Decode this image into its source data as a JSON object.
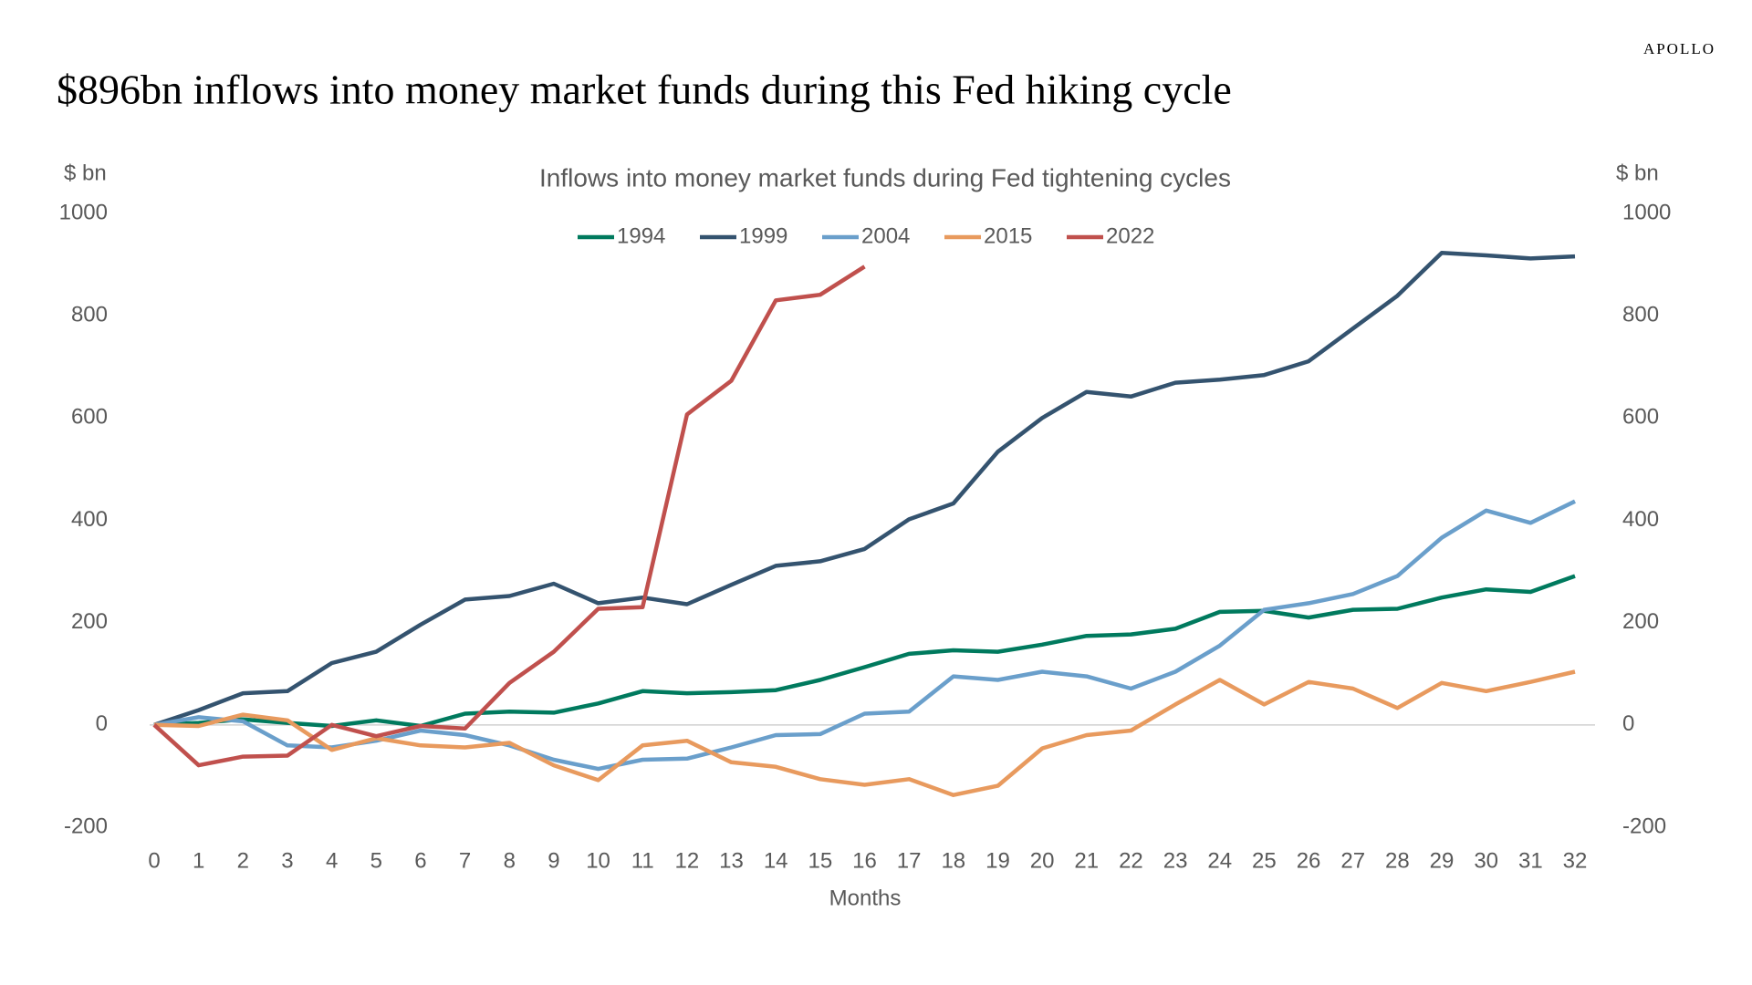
{
  "brand": "APOLLO",
  "chart_data": {
    "type": "line",
    "title": "$896bn inflows into money market funds during this Fed hiking cycle",
    "subtitle": "Inflows into money market funds during Fed tightening cycles",
    "y_label": "$ bn",
    "y2_label": "$ bn",
    "x_label": "Months",
    "x": [
      0,
      1,
      2,
      3,
      4,
      5,
      6,
      7,
      8,
      9,
      10,
      11,
      12,
      13,
      14,
      15,
      16,
      17,
      18,
      19,
      20,
      21,
      22,
      23,
      24,
      25,
      26,
      27,
      28,
      29,
      30,
      31,
      32
    ],
    "xlim": [
      0,
      32
    ],
    "xticks": [
      0,
      1,
      2,
      3,
      4,
      5,
      6,
      7,
      8,
      9,
      10,
      11,
      12,
      13,
      14,
      15,
      16,
      17,
      18,
      19,
      20,
      21,
      22,
      23,
      24,
      25,
      26,
      27,
      28,
      29,
      30,
      31,
      32
    ],
    "ylim": [
      -200,
      1000
    ],
    "yticks": [
      -200,
      0,
      200,
      400,
      600,
      800,
      1000
    ],
    "y2lim": [
      -200,
      1000
    ],
    "y2ticks": [
      -200,
      0,
      200,
      400,
      600,
      800,
      1000
    ],
    "zero_line": true,
    "legend": "top",
    "series": [
      {
        "name": "1994",
        "color": "#007a5e",
        "values": [
          0,
          4,
          11,
          4,
          -2,
          9,
          -2,
          22,
          26,
          24,
          42,
          66,
          62,
          64,
          68,
          88,
          113,
          139,
          146,
          143,
          157,
          174,
          177,
          188,
          221,
          223,
          210,
          225,
          227,
          249,
          265,
          260,
          291
        ]
      },
      {
        "name": "1999",
        "color": "#34536f",
        "values": [
          0,
          29,
          62,
          66,
          121,
          143,
          196,
          245,
          252,
          276,
          238,
          249,
          236,
          274,
          311,
          320,
          344,
          402,
          433,
          534,
          600,
          651,
          642,
          669,
          675,
          684,
          711,
          775,
          839,
          923,
          918,
          912,
          916
        ]
      },
      {
        "name": "2004",
        "color": "#6a9fcb",
        "values": [
          0,
          15,
          7,
          -40,
          -44,
          -31,
          -11,
          -20,
          -40,
          -68,
          -86,
          -68,
          -66,
          -44,
          -20,
          -18,
          22,
          26,
          95,
          88,
          104,
          95,
          71,
          104,
          155,
          225,
          238,
          256,
          291,
          366,
          419,
          395,
          437
        ]
      },
      {
        "name": "2015",
        "color": "#e89a5e",
        "values": [
          0,
          -2,
          20,
          9,
          -49,
          -26,
          -40,
          -44,
          -35,
          -79,
          -108,
          -40,
          -31,
          -73,
          -82,
          -106,
          -117,
          -106,
          -137,
          -119,
          -46,
          -20,
          -11,
          40,
          88,
          40,
          84,
          71,
          33,
          82,
          66,
          84,
          104
        ]
      },
      {
        "name": "2022",
        "color": "#c0504d",
        "values": [
          0,
          -79,
          -62,
          -60,
          0,
          -22,
          -2,
          -7,
          82,
          143,
          227,
          230,
          607,
          673,
          830,
          841,
          896,
          null,
          null,
          null,
          null,
          null,
          null,
          null,
          null,
          null,
          null,
          null,
          null,
          null,
          null,
          null,
          null
        ]
      }
    ]
  }
}
